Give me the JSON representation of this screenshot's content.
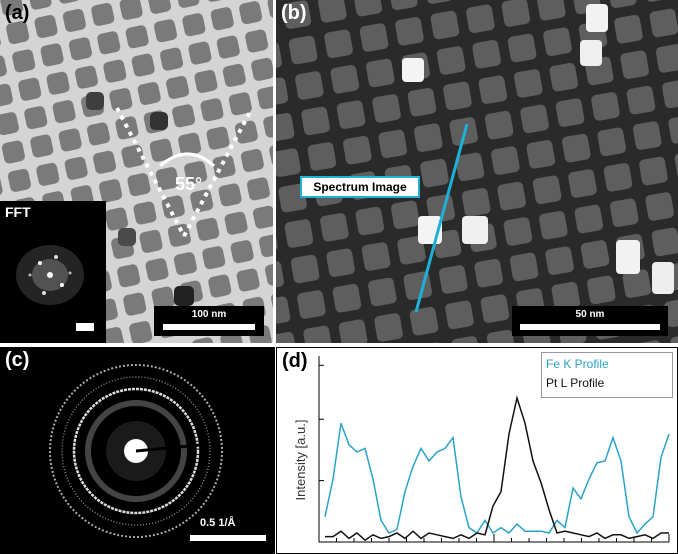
{
  "panels": {
    "a": {
      "label": "(a)",
      "angle_label": "55°",
      "inset_label": "FFT",
      "scale_label": "100 nm"
    },
    "b": {
      "label": "(b)",
      "box_label": "Spectrum Image",
      "scale_label": "50 nm"
    },
    "c": {
      "label": "(c)",
      "scale_label": "0.5 1/Å"
    },
    "d": {
      "label": "(d)"
    }
  },
  "colors": {
    "fe": "#29a3c9",
    "pt": "#111111",
    "spectrum_line": "#1fb0d8"
  },
  "chart_data": {
    "type": "line",
    "ylabel": "Intensity [a.u.]",
    "xlabel": "",
    "x": [
      0,
      1,
      2,
      3,
      4,
      5,
      6,
      7,
      8,
      9,
      10,
      11,
      12,
      13,
      14,
      15,
      16,
      17,
      18,
      19,
      20,
      21,
      22,
      23,
      24,
      25,
      26,
      27,
      28,
      29,
      30,
      31,
      32,
      33,
      34,
      35,
      36,
      37,
      38,
      39,
      40,
      41,
      42,
      43
    ],
    "legend_position": "top-right",
    "series": [
      {
        "name": "Fe K Profile",
        "color": "#29a3c9",
        "values": [
          0.14,
          0.35,
          0.66,
          0.54,
          0.5,
          0.52,
          0.35,
          0.12,
          0.05,
          0.07,
          0.28,
          0.42,
          0.52,
          0.45,
          0.5,
          0.52,
          0.58,
          0.25,
          0.08,
          0.05,
          0.12,
          0.05,
          0.08,
          0.05,
          0.1,
          0.06,
          0.06,
          0.06,
          0.05,
          0.12,
          0.08,
          0.3,
          0.24,
          0.35,
          0.44,
          0.45,
          0.58,
          0.45,
          0.14,
          0.05,
          0.1,
          0.14,
          0.47,
          0.6
        ]
      },
      {
        "name": "Pt L Profile",
        "color": "#111111",
        "values": [
          0.03,
          0.03,
          0.06,
          0.02,
          0.05,
          0.01,
          0.04,
          0.02,
          0.03,
          0.05,
          0.02,
          0.06,
          0.02,
          0.05,
          0.04,
          0.03,
          0.02,
          0.04,
          0.02,
          0.05,
          0.04,
          0.2,
          0.28,
          0.6,
          0.8,
          0.66,
          0.45,
          0.33,
          0.18,
          0.05,
          0.06,
          0.05,
          0.04,
          0.03,
          0.05,
          0.02,
          0.04,
          0.04,
          0.02,
          0.03,
          0.04,
          0.02,
          0.05,
          0.05
        ]
      }
    ]
  }
}
